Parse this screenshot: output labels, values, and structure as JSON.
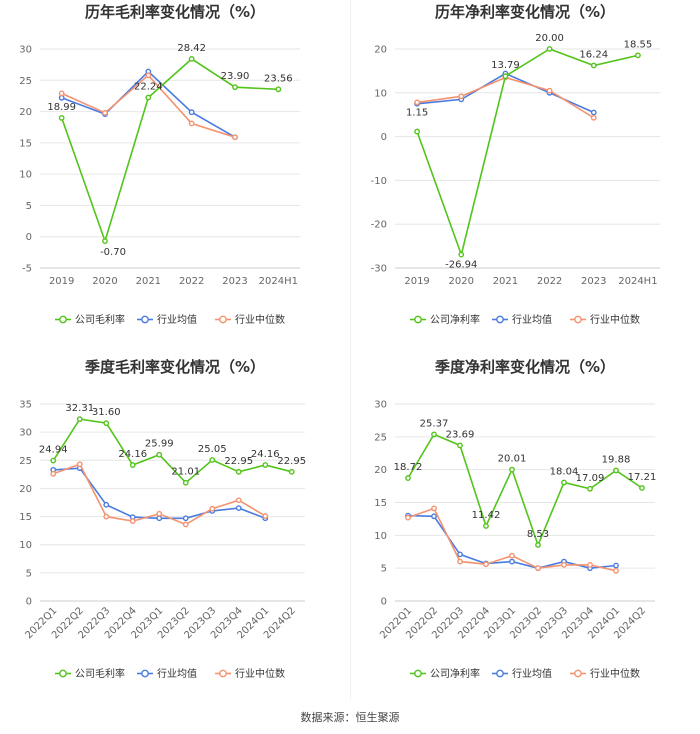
{
  "source": "数据来源：恒生聚源",
  "colors": {
    "company": "#52c41a",
    "avg": "#4a7be0",
    "median": "#f5926f"
  },
  "chart_data": [
    {
      "type": "line",
      "title": "历年毛利率变化情况（%）",
      "categories": [
        "2019",
        "2020",
        "2021",
        "2022",
        "2023",
        "2024H1"
      ],
      "ylim": [
        -5,
        30
      ],
      "yticks": [
        -5,
        0,
        5,
        10,
        15,
        20,
        25,
        30
      ],
      "ytick_labels": [
        "-5",
        "0",
        "5",
        "10",
        "15",
        "20",
        "25",
        "30"
      ],
      "series": [
        {
          "name": "公司毛利率",
          "values": [
            18.99,
            -0.7,
            22.24,
            28.42,
            23.9,
            23.56
          ],
          "labels": [
            "18.99",
            "-0.70",
            "22.24",
            "28.42",
            "23.90",
            "23.56"
          ]
        },
        {
          "name": "行业均值",
          "values": [
            22.2,
            19.6,
            26.4,
            19.9,
            15.9,
            null
          ]
        },
        {
          "name": "行业中位数",
          "values": [
            22.9,
            19.8,
            25.8,
            18.1,
            15.9,
            null
          ]
        }
      ]
    },
    {
      "type": "line",
      "title": "历年净利率变化情况（%）",
      "categories": [
        "2019",
        "2020",
        "2021",
        "2022",
        "2023",
        "2024H1"
      ],
      "ylim": [
        -30,
        20
      ],
      "yticks": [
        -30,
        -20,
        -10,
        0,
        10,
        20
      ],
      "ytick_labels": [
        "-30",
        "-20",
        "-10",
        "0",
        "10",
        "20"
      ],
      "series": [
        {
          "name": "公司净利率",
          "values": [
            1.15,
            -26.94,
            13.79,
            20.0,
            16.24,
            18.55
          ],
          "labels": [
            "1.15",
            "-26.94",
            "13.79",
            "20.00",
            "16.24",
            "18.55"
          ]
        },
        {
          "name": "行业均值",
          "values": [
            7.5,
            8.5,
            14.4,
            10.0,
            5.5,
            null
          ]
        },
        {
          "name": "行业中位数",
          "values": [
            7.8,
            9.2,
            13.5,
            10.5,
            4.3,
            null
          ]
        }
      ]
    },
    {
      "type": "line",
      "title": "季度毛利率变化情况（%）",
      "categories": [
        "2022Q1",
        "2022Q2",
        "2022Q3",
        "2022Q4",
        "2023Q1",
        "2023Q2",
        "2023Q3",
        "2023Q4",
        "2024Q1",
        "2024Q2"
      ],
      "ylim": [
        0,
        35
      ],
      "yticks": [
        0,
        5,
        10,
        15,
        20,
        25,
        30,
        35
      ],
      "ytick_labels": [
        "0",
        "5",
        "10",
        "15",
        "20",
        "25",
        "30",
        "35"
      ],
      "series": [
        {
          "name": "公司毛利率",
          "values": [
            24.94,
            32.31,
            31.6,
            24.16,
            25.99,
            21.01,
            25.05,
            22.95,
            24.16,
            22.95
          ],
          "labels": [
            "24.94",
            "32.31",
            "31.60",
            "24.16",
            "25.99",
            "21.01",
            "25.05",
            "22.95",
            "24.16",
            "22.95"
          ]
        },
        {
          "name": "行业均值",
          "values": [
            23.3,
            23.6,
            17.1,
            14.9,
            14.7,
            14.7,
            16.0,
            16.5,
            14.7,
            null
          ]
        },
        {
          "name": "行业中位数",
          "values": [
            22.6,
            24.3,
            15.0,
            14.2,
            15.5,
            13.6,
            16.4,
            17.9,
            15.1,
            null
          ]
        }
      ]
    },
    {
      "type": "line",
      "title": "季度净利率变化情况（%）",
      "categories": [
        "2022Q1",
        "2022Q2",
        "2022Q3",
        "2022Q4",
        "2023Q1",
        "2023Q2",
        "2023Q3",
        "2023Q4",
        "2024Q1",
        "2024Q2"
      ],
      "ylim": [
        0,
        30
      ],
      "yticks": [
        0,
        5,
        10,
        15,
        20,
        25,
        30
      ],
      "ytick_labels": [
        "0",
        "5",
        "10",
        "15",
        "20",
        "25",
        "30"
      ],
      "series": [
        {
          "name": "公司净利率",
          "values": [
            18.72,
            25.37,
            23.69,
            11.42,
            20.01,
            8.53,
            18.04,
            17.09,
            19.88,
            17.21
          ],
          "labels": [
            "18.72",
            "25.37",
            "23.69",
            "11.42",
            "20.01",
            "8.53",
            "18.04",
            "17.09",
            "19.88",
            "17.21"
          ]
        },
        {
          "name": "行业均值",
          "values": [
            13.0,
            12.9,
            7.1,
            5.7,
            6.0,
            5.0,
            6.0,
            5.0,
            5.4,
            null
          ]
        },
        {
          "name": "行业中位数",
          "values": [
            12.7,
            14.1,
            6.0,
            5.6,
            6.9,
            5.0,
            5.5,
            5.5,
            4.6,
            null
          ]
        }
      ]
    }
  ]
}
